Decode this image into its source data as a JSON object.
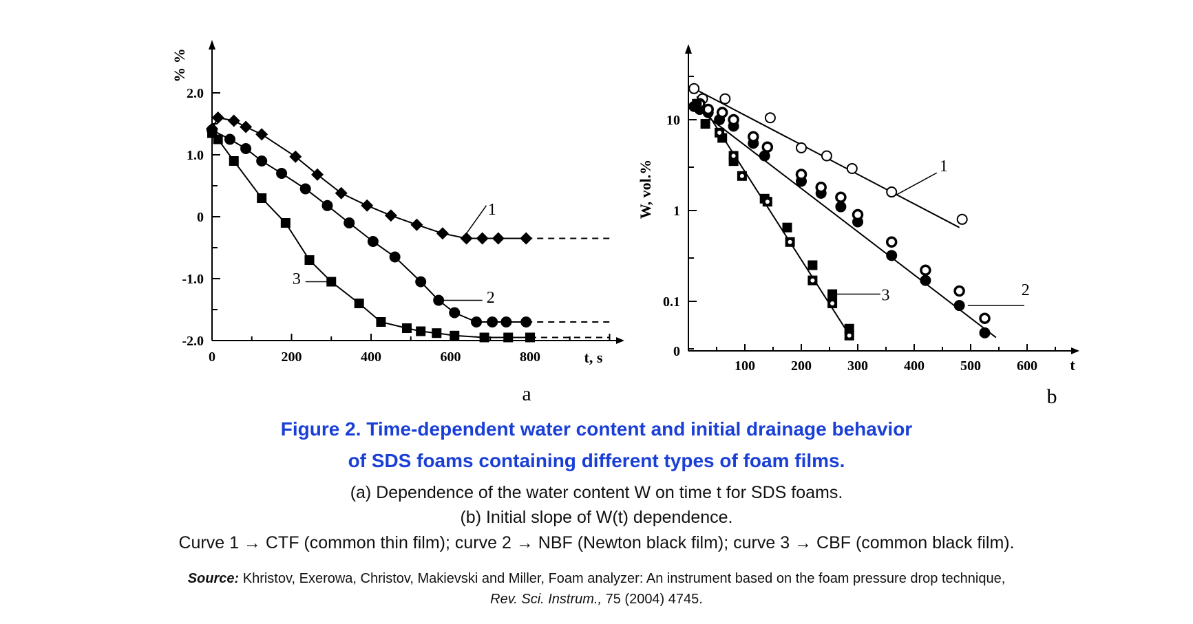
{
  "chart_data": [
    {
      "type": "line",
      "panel_label": "a",
      "xlabel": "t, s",
      "ylabel": "% %",
      "x_ticks": [
        0,
        200,
        400,
        600,
        800
      ],
      "y_ticks": [
        {
          "v": 2.0,
          "label": "2.0"
        },
        {
          "v": 1.0,
          "label": "1.0"
        },
        {
          "v": 0,
          "label": "0"
        },
        {
          "v": -1.0,
          "label": "-1.0"
        },
        {
          "v": -2.0,
          "label": "-2.0"
        }
      ],
      "xlim": [
        0,
        1040
      ],
      "ylim": [
        -2.05,
        2.85
      ],
      "grid": false,
      "series": [
        {
          "name": "1",
          "marker": "diamond",
          "x": [
            0,
            15,
            55,
            85,
            125,
            210,
            265,
            325,
            390,
            450,
            515,
            580,
            640,
            680,
            720,
            790
          ],
          "y": [
            1.42,
            1.6,
            1.55,
            1.45,
            1.33,
            0.97,
            0.68,
            0.38,
            0.18,
            0.02,
            -0.13,
            -0.27,
            -0.35,
            -0.35,
            -0.35,
            -0.35
          ],
          "dashed_to": 1000
        },
        {
          "name": "2",
          "marker": "circle",
          "x": [
            0,
            45,
            85,
            125,
            175,
            235,
            290,
            345,
            405,
            460,
            525,
            570,
            610,
            665,
            705,
            740,
            790
          ],
          "y": [
            1.4,
            1.25,
            1.1,
            0.9,
            0.7,
            0.45,
            0.18,
            -0.1,
            -0.4,
            -0.65,
            -1.05,
            -1.35,
            -1.55,
            -1.7,
            -1.7,
            -1.7,
            -1.7
          ],
          "dashed_to": 1000
        },
        {
          "name": "3",
          "marker": "square",
          "x": [
            0,
            15,
            55,
            125,
            185,
            245,
            300,
            370,
            425,
            490,
            525,
            565,
            610,
            685,
            745,
            800
          ],
          "y": [
            1.35,
            1.25,
            0.9,
            0.3,
            -0.1,
            -0.7,
            -1.05,
            -1.4,
            -1.7,
            -1.8,
            -1.85,
            -1.88,
            -1.92,
            -1.95,
            -1.95,
            -1.95
          ],
          "dashed_to": 1000
        }
      ],
      "annotations": [
        {
          "text": "1",
          "series": "1"
        },
        {
          "text": "2",
          "series": "2"
        },
        {
          "text": "3",
          "series": "3"
        }
      ]
    },
    {
      "type": "scatter",
      "panel_label": "b",
      "xlabel": "t",
      "ylabel": "W, vol.%",
      "y_scale": "log",
      "x_ticks": [
        100,
        200,
        300,
        400,
        500,
        600
      ],
      "y_ticks": [
        {
          "v": 10,
          "label": "10"
        },
        {
          "v": 1,
          "label": "1"
        },
        {
          "v": 0.1,
          "label": "0.1"
        }
      ],
      "y_origin_label": "0",
      "xlim": [
        0,
        690
      ],
      "ylim": [
        0.03,
        60
      ],
      "grid": false,
      "series": [
        {
          "name": "1",
          "marker": "open-circle",
          "x": [
            10,
            25,
            65,
            145,
            200,
            245,
            290,
            360,
            485
          ],
          "y": [
            22,
            17,
            17,
            10.5,
            4.9,
            4.0,
            2.9,
            1.6,
            0.8
          ],
          "fit": {
            "x0": 10,
            "y0": 22,
            "x1": 480,
            "y1": 0.65
          }
        },
        {
          "name": "2",
          "marker": "filled-circle",
          "x": [
            10,
            20,
            35,
            55,
            80,
            115,
            135,
            200,
            235,
            270,
            300,
            360,
            420,
            480,
            525
          ],
          "y": [
            14,
            13,
            12,
            10,
            8.5,
            5.5,
            4.0,
            2.1,
            1.55,
            1.1,
            0.75,
            0.32,
            0.17,
            0.09,
            0.045
          ],
          "fit": {
            "x0": 10,
            "y0": 14,
            "x1": 545,
            "y1": 0.04
          }
        },
        {
          "name": "2",
          "marker": "ring",
          "x": [
            20,
            35,
            60,
            80,
            115,
            140,
            200,
            235,
            270,
            300,
            360,
            420,
            480,
            525
          ],
          "y": [
            15,
            13,
            12,
            10,
            6.5,
            5.0,
            2.5,
            1.8,
            1.4,
            0.9,
            0.45,
            0.22,
            0.13,
            0.065
          ]
        },
        {
          "name": "3",
          "marker": "filled-square",
          "x": [
            15,
            30,
            60,
            80,
            135,
            175,
            220,
            255,
            285
          ],
          "y": [
            15,
            9,
            6.3,
            3.5,
            1.35,
            0.65,
            0.25,
            0.12,
            0.05
          ],
          "fit": {
            "x0": 15,
            "y0": 18,
            "x1": 288,
            "y1": 0.04
          }
        },
        {
          "name": "3",
          "marker": "dotted-square",
          "x": [
            55,
            80,
            95,
            140,
            180,
            220,
            255,
            285
          ],
          "y": [
            7.2,
            4.0,
            2.4,
            1.25,
            0.45,
            0.17,
            0.095,
            0.042
          ]
        }
      ],
      "annotations": [
        {
          "text": "1",
          "series": "1"
        },
        {
          "text": "2",
          "series": "2"
        },
        {
          "text": "3",
          "series": "3"
        }
      ]
    }
  ],
  "caption": {
    "title_line1": "Figure 2. Time-dependent  water content and initial drainage behavior",
    "title_line2": "of SDS foams containing different types of foam films.",
    "line_a": "(a) Dependence of the water content W on time t for SDS foams.",
    "line_b": "(b) Initial slope of W(t) dependence.",
    "curves": "Curve 1 → CTF (common thin film); curve 2 → NBF (Newton black film); curve 3 → CBF (common black film).",
    "source_label": "Source:",
    "source_text": " Khristov, Exerowa, Christov, Makievski and Miller, Foam analyzer: An instrument based on the foam pressure drop technique,",
    "journal": "Rev. Sci. Instrum.,",
    "journal_rest": " 75 (2004) 4745."
  }
}
